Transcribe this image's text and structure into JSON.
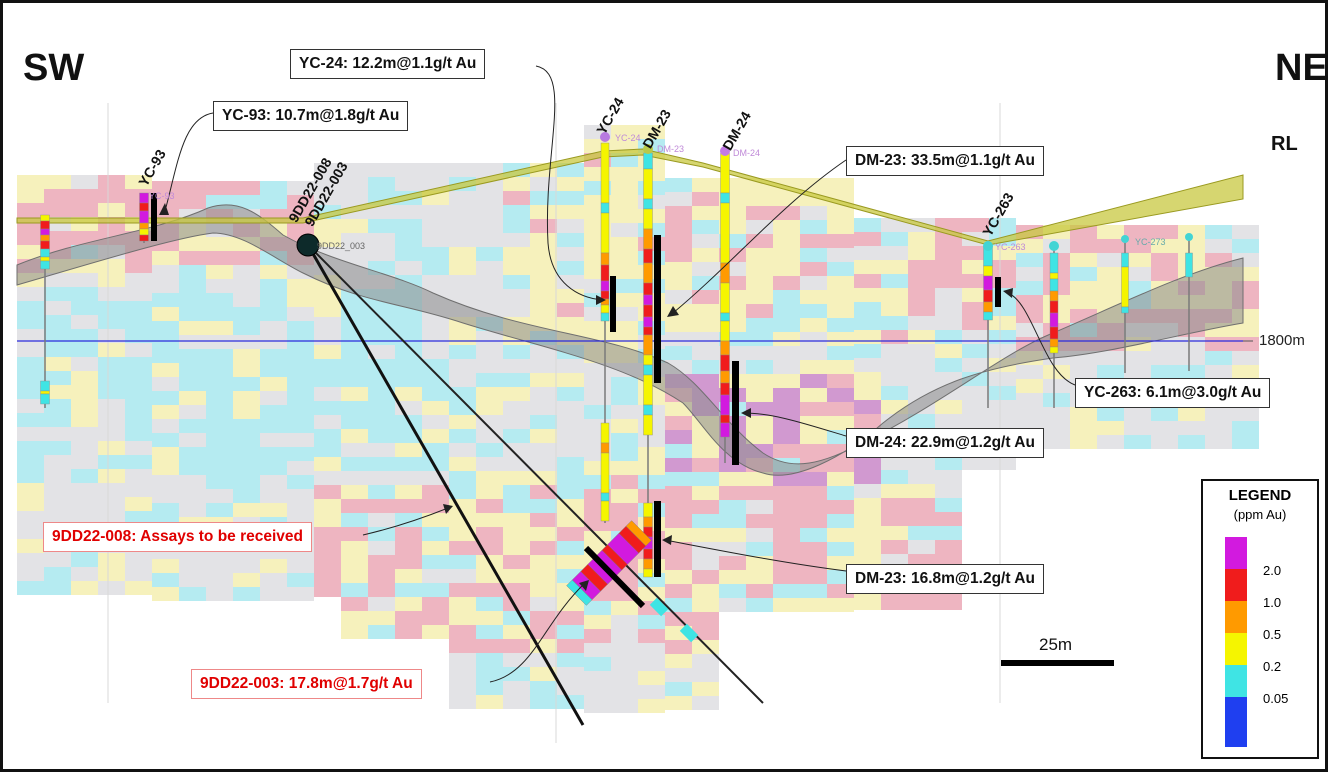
{
  "directions": {
    "left": "SW",
    "right": "NE"
  },
  "rl_label": "RL",
  "rl_marker": "1800m",
  "scale_bar": "25m",
  "holes": [
    {
      "id": "YC-93",
      "tag": "YC-93"
    },
    {
      "id": "9DD22-008",
      "tag": ""
    },
    {
      "id": "9DD22-003",
      "tag": "9DD22_003"
    },
    {
      "id": "YC-24",
      "tag": "YC-24"
    },
    {
      "id": "DM-23",
      "tag": "DM-23"
    },
    {
      "id": "DM-24",
      "tag": "DM-24"
    },
    {
      "id": "YC-263",
      "tag": "YC-263"
    },
    {
      "id": "",
      "tag": "YC-273"
    }
  ],
  "callouts": {
    "yc24": "YC-24: 12.2m@1.1g/t Au",
    "yc93": "YC-93: 10.7m@1.8g/t Au",
    "dm23_upper": "DM-23: 33.5m@1.1g/t Au",
    "yc263": "YC-263: 6.1m@3.0g/t Au",
    "dm24": "DM-24: 22.9m@1.2g/t Au",
    "dd008": "9DD22-008: Assays to be received",
    "dm23_lower": "DM-23: 16.8m@1.2g/t Au",
    "dd003": "9DD22-003: 17.8m@1.7g/t Au"
  },
  "legend": {
    "title": "LEGEND",
    "subtitle": "(ppm Au)",
    "thresholds": [
      "2.0",
      "1.0",
      "0.5",
      "0.2",
      "0.05"
    ],
    "colors": {
      "gt2": "#d21adf",
      "1to2": "#f01c1c",
      "0.5to1": "#ff9a00",
      "0.2to0.5": "#f5f500",
      "0.05to0.2": "#3fe4e4",
      "lt0.05": "#1f3ff0"
    }
  },
  "block_colors": {
    "low": "#d9d9dd",
    "cyan": "#a8e8ee",
    "yellow": "#f5eeb0",
    "pink": "#eba8b6",
    "purple": "#c987c8"
  }
}
